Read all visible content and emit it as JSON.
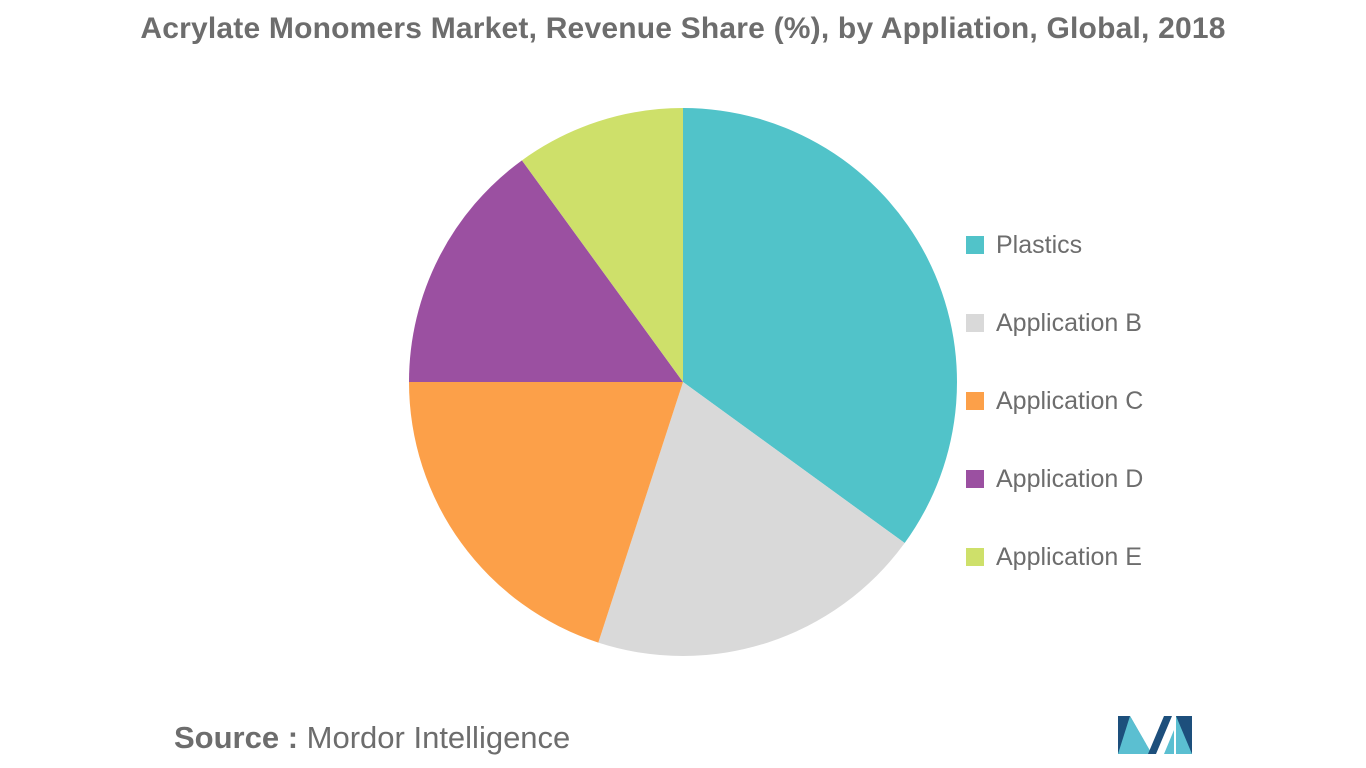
{
  "title": "Acrylate Monomers Market, Revenue Share (%), by Appliation, Global, 2018",
  "source": {
    "label": "Source :",
    "text": "Mordor Intelligence"
  },
  "logo_name": "mordor-intelligence-logo",
  "chart_data": {
    "type": "pie",
    "title": "Acrylate Monomers Market, Revenue Share (%), by Appliation, Global, 2018",
    "categories": [
      "Plastics",
      "Application B",
      "Application C",
      "Application D",
      "Application E"
    ],
    "values": [
      35,
      20,
      20,
      15,
      10
    ],
    "colors": [
      "#51c3c9",
      "#d9d9d9",
      "#fca049",
      "#9b50a1",
      "#cee06a"
    ],
    "start_angle_deg": 0,
    "direction": "clockwise",
    "legend_position": "right"
  }
}
